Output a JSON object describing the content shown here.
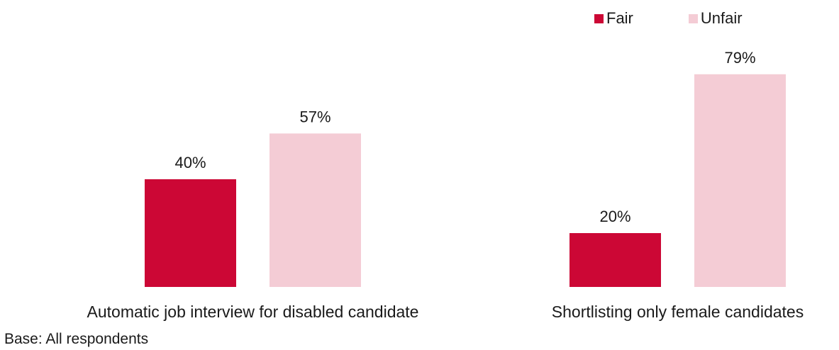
{
  "chart_data": {
    "type": "bar",
    "categories": [
      "Automatic job interview for disabled candidate",
      "Shortlisting only female candidates"
    ],
    "series": [
      {
        "name": "Fair",
        "values": [
          40,
          20
        ],
        "labels": [
          "40%",
          "20%"
        ],
        "color": "#cc0735"
      },
      {
        "name": "Unfair",
        "values": [
          57,
          79
        ],
        "labels": [
          "57%",
          "79%"
        ],
        "color": "#f4ccd5"
      }
    ],
    "unit": "%",
    "ylim": [
      0,
      100
    ],
    "grid": false,
    "legend_position": "top-right",
    "footnote": "Base: All respondents"
  }
}
